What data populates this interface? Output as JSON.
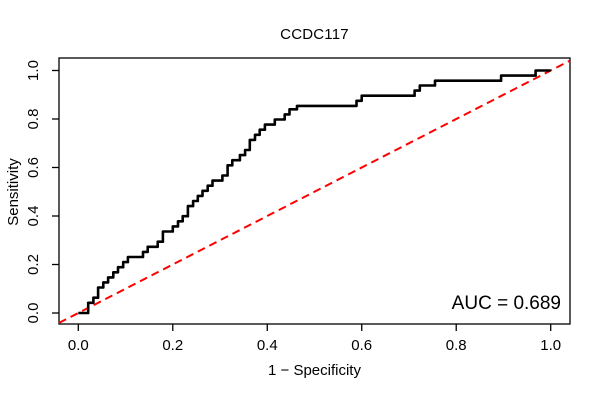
{
  "colors": {
    "background": "#ffffff",
    "axis": "#000000",
    "text": "#000000",
    "roc_curve": "#000000",
    "reference_line": "#ff0000"
  },
  "chart_data": {
    "type": "line",
    "subtype": "roc-curve",
    "title": "CCDC117",
    "xlabel": "1 − Specificity",
    "ylabel": "Sensitivity",
    "auc_label": "AUC = 0.689",
    "auc_value": 0.689,
    "xlim": [
      0,
      1
    ],
    "ylim": [
      0,
      1
    ],
    "grid": false,
    "legend_position": "none",
    "x_ticks": [
      0.0,
      0.2,
      0.4,
      0.6,
      0.8,
      1.0
    ],
    "y_ticks": [
      0.0,
      0.2,
      0.4,
      0.6,
      0.8,
      1.0
    ],
    "x_tick_labels": [
      "0.0",
      "0.2",
      "0.4",
      "0.6",
      "0.8",
      "1.0"
    ],
    "y_tick_labels": [
      "0.0",
      "0.2",
      "0.4",
      "0.6",
      "0.8",
      "1.0"
    ],
    "series": [
      {
        "name": "ROC curve",
        "color": "#000000",
        "style": "solid",
        "linewidth": 2.6,
        "points": [
          [
            0.0,
            0.0
          ],
          [
            0.021,
            0.0
          ],
          [
            0.021,
            0.042
          ],
          [
            0.032,
            0.042
          ],
          [
            0.032,
            0.063
          ],
          [
            0.042,
            0.063
          ],
          [
            0.042,
            0.105
          ],
          [
            0.053,
            0.105
          ],
          [
            0.053,
            0.126
          ],
          [
            0.063,
            0.126
          ],
          [
            0.063,
            0.147
          ],
          [
            0.074,
            0.147
          ],
          [
            0.074,
            0.168
          ],
          [
            0.084,
            0.168
          ],
          [
            0.084,
            0.189
          ],
          [
            0.095,
            0.189
          ],
          [
            0.095,
            0.21
          ],
          [
            0.105,
            0.21
          ],
          [
            0.105,
            0.231
          ],
          [
            0.137,
            0.231
          ],
          [
            0.137,
            0.252
          ],
          [
            0.147,
            0.252
          ],
          [
            0.147,
            0.273
          ],
          [
            0.168,
            0.273
          ],
          [
            0.168,
            0.294
          ],
          [
            0.179,
            0.294
          ],
          [
            0.179,
            0.336
          ],
          [
            0.2,
            0.336
          ],
          [
            0.2,
            0.357
          ],
          [
            0.211,
            0.357
          ],
          [
            0.211,
            0.378
          ],
          [
            0.221,
            0.378
          ],
          [
            0.221,
            0.399
          ],
          [
            0.232,
            0.399
          ],
          [
            0.232,
            0.441
          ],
          [
            0.243,
            0.441
          ],
          [
            0.243,
            0.462
          ],
          [
            0.253,
            0.462
          ],
          [
            0.253,
            0.483
          ],
          [
            0.263,
            0.483
          ],
          [
            0.263,
            0.504
          ],
          [
            0.274,
            0.504
          ],
          [
            0.274,
            0.525
          ],
          [
            0.284,
            0.525
          ],
          [
            0.284,
            0.546
          ],
          [
            0.305,
            0.546
          ],
          [
            0.305,
            0.567
          ],
          [
            0.316,
            0.567
          ],
          [
            0.316,
            0.609
          ],
          [
            0.326,
            0.609
          ],
          [
            0.326,
            0.63
          ],
          [
            0.342,
            0.63
          ],
          [
            0.342,
            0.651
          ],
          [
            0.353,
            0.651
          ],
          [
            0.353,
            0.672
          ],
          [
            0.363,
            0.672
          ],
          [
            0.363,
            0.714
          ],
          [
            0.374,
            0.714
          ],
          [
            0.374,
            0.735
          ],
          [
            0.384,
            0.735
          ],
          [
            0.384,
            0.756
          ],
          [
            0.395,
            0.756
          ],
          [
            0.395,
            0.777
          ],
          [
            0.416,
            0.777
          ],
          [
            0.416,
            0.798
          ],
          [
            0.437,
            0.798
          ],
          [
            0.437,
            0.819
          ],
          [
            0.447,
            0.819
          ],
          [
            0.447,
            0.84
          ],
          [
            0.463,
            0.84
          ],
          [
            0.463,
            0.854
          ],
          [
            0.589,
            0.854
          ],
          [
            0.589,
            0.875
          ],
          [
            0.6,
            0.875
          ],
          [
            0.6,
            0.896
          ],
          [
            0.712,
            0.896
          ],
          [
            0.712,
            0.917
          ],
          [
            0.723,
            0.917
          ],
          [
            0.723,
            0.938
          ],
          [
            0.755,
            0.938
          ],
          [
            0.755,
            0.958
          ],
          [
            0.895,
            0.958
          ],
          [
            0.895,
            0.979
          ],
          [
            0.968,
            0.979
          ],
          [
            0.968,
            1.0
          ],
          [
            1.0,
            1.0
          ]
        ]
      },
      {
        "name": "chance diagonal",
        "color": "#ff0000",
        "style": "dashed",
        "linewidth": 2,
        "points": [
          [
            0,
            0
          ],
          [
            1,
            1
          ]
        ]
      }
    ]
  }
}
